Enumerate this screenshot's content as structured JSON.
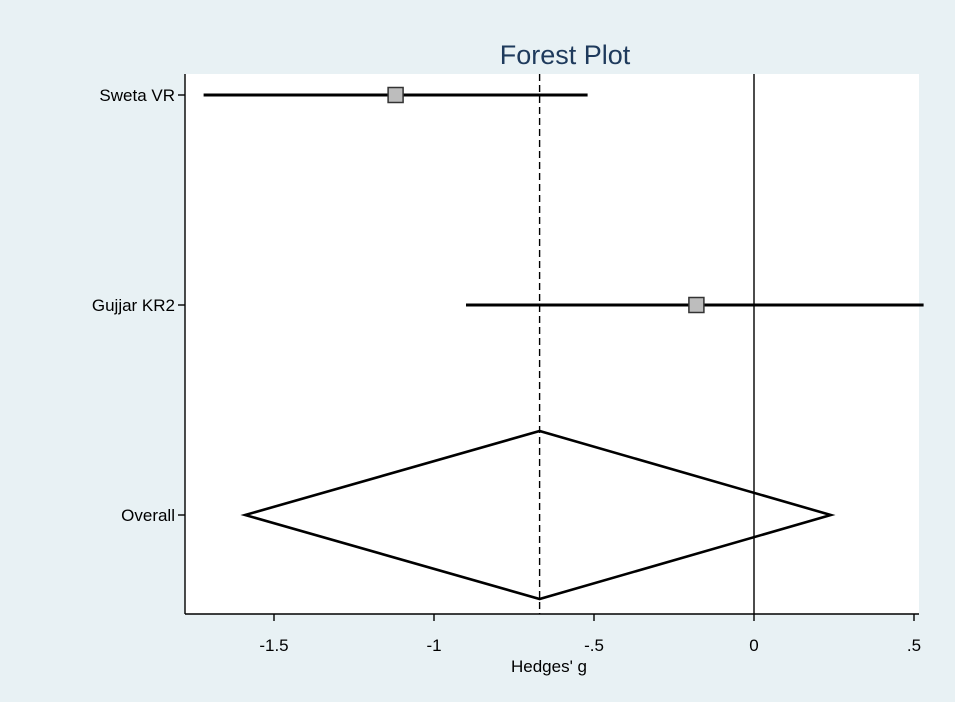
{
  "chart_data": {
    "type": "forest",
    "title": "Forest Plot",
    "xlabel": "Hedges' g",
    "ylabel": "",
    "xlim": [
      -1.78,
      0.53
    ],
    "x_ticks": [
      -1.5,
      -1,
      -0.5,
      0,
      0.5
    ],
    "x_tick_labels": [
      "-1.5",
      "-1",
      "-.5",
      "0",
      ".5"
    ],
    "null_line": 0,
    "pooled_line": -0.67,
    "studies": [
      {
        "label": "Sweta VR",
        "estimate": -1.12,
        "ci_lower": -1.72,
        "ci_upper": -0.52
      },
      {
        "label": "Gujjar KR2",
        "estimate": -0.18,
        "ci_lower": -0.9,
        "ci_upper": 0.53
      }
    ],
    "overall": {
      "label": "Overall",
      "estimate": -0.67,
      "ci_lower": -1.59,
      "ci_upper": 0.24
    },
    "grid": false,
    "legend": "none",
    "colors": {
      "outer_background": "#e8f1f4",
      "plot_background": "#ffffff",
      "title": "#1e3a5c",
      "lines": "#000000",
      "marker_fill": "#bdbdbd",
      "marker_stroke": "#333333"
    }
  }
}
